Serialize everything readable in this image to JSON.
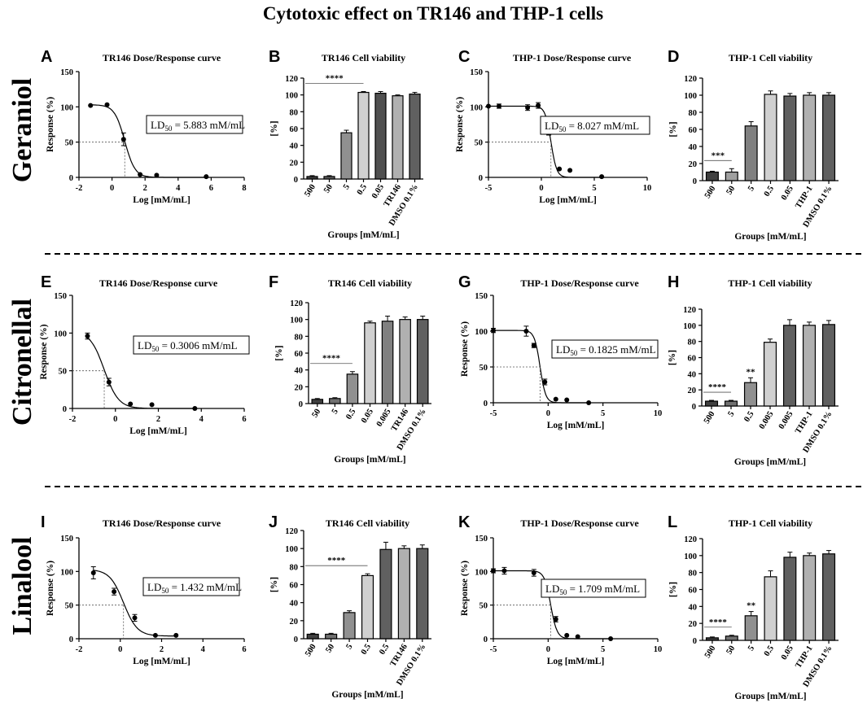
{
  "figure": {
    "title": "Cytotoxic effect on TR146 and THP-1 cells",
    "rows": [
      {
        "label": "Geraniol"
      },
      {
        "label": "Citronellal"
      },
      {
        "label": "Linalool"
      }
    ]
  },
  "chart_data": [
    {
      "panel": "A",
      "type": "scatter",
      "title": "TR146 Dose/Response curve",
      "xlabel": "Log [mM/mL]",
      "ylabel": "Response (%)",
      "xlim": [
        -2,
        8
      ],
      "ylim": [
        0,
        150
      ],
      "xticks": [
        -2,
        0,
        2,
        4,
        6,
        8
      ],
      "yticks": [
        0,
        50,
        100,
        150
      ],
      "x": [
        -1.3,
        -0.3,
        0.7,
        1.7,
        2.7,
        5.7
      ],
      "y": [
        102,
        103,
        54,
        4,
        3,
        1
      ],
      "err": [
        0,
        0,
        9,
        0,
        0,
        0
      ],
      "curve": {
        "top": 103,
        "bottom": 0,
        "logld50": 0.77,
        "hill": 1.4
      },
      "ld50": {
        "label": "LD",
        "sub": "50",
        "value": " = 5.883 mM/mL"
      }
    },
    {
      "panel": "B",
      "type": "bar",
      "title": "TR146 Cell viability",
      "ylabel": "[%]",
      "xlabel": "Groups [mM/mL]",
      "ylim": [
        0,
        120
      ],
      "yticks": [
        0,
        20,
        40,
        60,
        80,
        100,
        120
      ],
      "categories": [
        "500",
        "50",
        "5",
        "0.5",
        "0.05",
        "TR146",
        "DMSO 0.1%"
      ],
      "values": [
        3,
        3,
        55,
        103,
        102,
        99,
        101
      ],
      "errors": [
        1,
        1,
        3,
        1,
        2,
        1,
        2
      ],
      "colors": [
        "#404040",
        "#606060",
        "#909090",
        "#d0d0d0",
        "#505050",
        "#b0b0b0",
        "#606060"
      ],
      "significance": {
        "label": "****",
        "from": 0,
        "to": 3
      }
    },
    {
      "panel": "C",
      "type": "scatter",
      "title": "THP-1 Dose/Response curve",
      "xlabel": "Log [mM/mL]",
      "ylabel": "Response (%)",
      "xlim": [
        -5,
        10
      ],
      "ylim": [
        0,
        150
      ],
      "xticks": [
        -5,
        0,
        5,
        10
      ],
      "yticks": [
        0,
        50,
        100,
        150
      ],
      "x": [
        -5,
        -4,
        -1.3,
        -0.3,
        0.7,
        1.7,
        2.7,
        5.7
      ],
      "y": [
        101,
        101,
        99,
        102,
        65,
        12,
        10,
        1
      ],
      "err": [
        0,
        3,
        4,
        4,
        5,
        0,
        0,
        0
      ],
      "curve": {
        "top": 101,
        "bottom": 0,
        "logld50": 0.905,
        "hill": 1.6
      },
      "ld50": {
        "label": "LD",
        "sub": "50",
        "value": " = 8.027 mM/mL"
      }
    },
    {
      "panel": "D",
      "type": "bar",
      "title": "THP-1 Cell viability",
      "ylabel": "[%]",
      "xlabel": "Groups [mM/mL]",
      "ylim": [
        0,
        120
      ],
      "yticks": [
        0,
        20,
        40,
        60,
        80,
        100,
        120
      ],
      "categories": [
        "500",
        "50",
        "5",
        "0.5",
        "0.05",
        "THP-1",
        "DMSO 0.1%"
      ],
      "values": [
        10,
        10,
        64,
        101,
        99,
        100,
        100
      ],
      "errors": [
        1,
        4,
        5,
        4,
        3,
        3,
        3
      ],
      "colors": [
        "#404040",
        "#a0a0a0",
        "#808080",
        "#d0d0d0",
        "#606060",
        "#b0b0b0",
        "#606060"
      ],
      "significance": {
        "label": "***",
        "from": 0,
        "to": 1
      }
    },
    {
      "panel": "E",
      "type": "scatter",
      "title": "TR146 Dose/Response curve",
      "xlabel": "Log [mM/mL]",
      "ylabel": "Response (%)",
      "xlim": [
        -2,
        6
      ],
      "ylim": [
        0,
        150
      ],
      "xticks": [
        -2,
        0,
        2,
        4,
        6
      ],
      "yticks": [
        0,
        50,
        100,
        150
      ],
      "x": [
        -1.3,
        -0.3,
        0.7,
        1.7,
        3.7
      ],
      "y": [
        96,
        35,
        6,
        5,
        0
      ],
      "err": [
        4,
        5,
        0,
        0,
        0
      ],
      "curve": {
        "top": 103,
        "bottom": 0,
        "logld50": -0.52,
        "hill": 1.3
      },
      "ld50": {
        "label": "LD",
        "sub": "50",
        "value": " = 0.3006 mM/mL"
      }
    },
    {
      "panel": "F",
      "type": "bar",
      "title": "TR146 Cell viability",
      "ylabel": "[%]",
      "xlabel": "Groups [mM/mL]",
      "ylim": [
        0,
        120
      ],
      "yticks": [
        0,
        20,
        40,
        60,
        80,
        100,
        120
      ],
      "categories": [
        "50",
        "5",
        "0.5",
        "0.05",
        "0.005",
        "TR146",
        "DMSO 0.1%"
      ],
      "values": [
        5,
        6,
        35,
        96,
        98,
        100,
        100
      ],
      "errors": [
        1,
        1,
        3,
        2,
        6,
        3,
        4
      ],
      "colors": [
        "#404040",
        "#707070",
        "#909090",
        "#d0d0d0",
        "#808080",
        "#b0b0b0",
        "#606060"
      ],
      "significance": {
        "label": "****",
        "from": 0,
        "to": 2
      }
    },
    {
      "panel": "G",
      "type": "scatter",
      "title": "THP-1 Dose/Response curve",
      "xlabel": "Log [mM/mL]",
      "ylabel": "Response (%)",
      "xlim": [
        -5,
        10
      ],
      "ylim": [
        0,
        150
      ],
      "xticks": [
        -5,
        0,
        5,
        10
      ],
      "yticks": [
        0,
        50,
        100,
        150
      ],
      "x": [
        -5,
        -2,
        -1.3,
        -0.3,
        0.7,
        1.7,
        3.7
      ],
      "y": [
        101,
        100,
        80,
        29,
        5,
        4,
        0
      ],
      "err": [
        3,
        7,
        3,
        4,
        0,
        0,
        0
      ],
      "curve": {
        "top": 101,
        "bottom": 0,
        "logld50": -0.74,
        "hill": 1.7
      },
      "ld50": {
        "label": "LD",
        "sub": "50",
        "value": " = 0.1825 mM/mL"
      }
    },
    {
      "panel": "H",
      "type": "bar",
      "title": "THP-1 Cell viability",
      "ylabel": "[%]",
      "xlabel": "Groups [mM/mL]",
      "ylim": [
        0,
        120
      ],
      "yticks": [
        0,
        20,
        40,
        60,
        80,
        100,
        120
      ],
      "categories": [
        "500",
        "5",
        "0.5",
        "0.005",
        "0.005",
        "THP-1",
        "DMSO 0.1%"
      ],
      "values": [
        6,
        6,
        29,
        79,
        100,
        100,
        101
      ],
      "errors": [
        1,
        1,
        6,
        4,
        7,
        4,
        5
      ],
      "colors": [
        "#404040",
        "#707070",
        "#909090",
        "#d0d0d0",
        "#606060",
        "#b0b0b0",
        "#606060"
      ],
      "significance": {
        "label": "****",
        "from": 0,
        "to": 1
      },
      "bar_marks": [
        {
          "index": 2,
          "label": "**"
        }
      ]
    },
    {
      "panel": "I",
      "type": "scatter",
      "title": "TR146 Dose/Response curve",
      "xlabel": "Log [mM/mL]",
      "ylabel": "Response (%)",
      "xlim": [
        -2,
        6
      ],
      "ylim": [
        0,
        150
      ],
      "xticks": [
        -2,
        0,
        2,
        4,
        6
      ],
      "yticks": [
        0,
        50,
        100,
        150
      ],
      "x": [
        -1.3,
        -0.3,
        0.7,
        1.7,
        2.7
      ],
      "y": [
        98,
        70,
        31,
        5,
        5
      ],
      "err": [
        9,
        5,
        5,
        0,
        0
      ],
      "curve": {
        "top": 103,
        "bottom": 4,
        "logld50": 0.156,
        "hill": 1.3
      },
      "ld50": {
        "label": "LD",
        "sub": "50",
        "value": " = 1.432 mM/mL"
      }
    },
    {
      "panel": "J",
      "type": "bar",
      "title": "TR146 Cell viability",
      "ylabel": "[%]",
      "xlabel": "Groups [mM/mL]",
      "ylim": [
        0,
        120
      ],
      "yticks": [
        0,
        20,
        40,
        60,
        80,
        100,
        120
      ],
      "categories": [
        "500",
        "50",
        "5",
        "0.5",
        "0.5",
        "TR146",
        "DMSO 0.1%"
      ],
      "values": [
        5,
        5,
        29,
        70,
        99,
        100,
        100
      ],
      "errors": [
        1,
        1,
        2,
        2,
        8,
        3,
        4
      ],
      "colors": [
        "#404040",
        "#707070",
        "#909090",
        "#d0d0d0",
        "#606060",
        "#b0b0b0",
        "#606060"
      ],
      "significance": {
        "label": "****",
        "from": 0,
        "to": 3
      }
    },
    {
      "panel": "K",
      "type": "scatter",
      "title": "THP-1 Dose/Response curve",
      "xlabel": "Log [mM/mL]",
      "ylabel": "Response (%)",
      "xlim": [
        -5,
        10
      ],
      "ylim": [
        0,
        150
      ],
      "xticks": [
        -5,
        0,
        5,
        10
      ],
      "yticks": [
        0,
        50,
        100,
        150
      ],
      "x": [
        -5,
        -4,
        -1.3,
        -0.3,
        0.7,
        1.7,
        2.7,
        5.7
      ],
      "y": [
        101,
        101,
        98,
        75,
        29,
        5,
        3,
        0
      ],
      "err": [
        3,
        5,
        5,
        4,
        4,
        0,
        0,
        0
      ],
      "curve": {
        "top": 101,
        "bottom": 0,
        "logld50": 0.233,
        "hill": 1.5
      },
      "ld50": {
        "label": "LD",
        "sub": "50",
        "value": " = 1.709 mM/mL"
      }
    },
    {
      "panel": "L",
      "type": "bar",
      "title": "THP-1 Cell viability",
      "ylabel": "[%]",
      "xlabel": "Groups [mM/mL]",
      "ylim": [
        0,
        120
      ],
      "yticks": [
        0,
        20,
        40,
        60,
        80,
        100,
        120
      ],
      "categories": [
        "500",
        "50",
        "5",
        "0.5",
        "0.05",
        "THP-1",
        "DMSO 0.1%"
      ],
      "values": [
        3,
        5,
        29,
        75,
        98,
        100,
        102
      ],
      "errors": [
        1,
        1,
        5,
        7,
        6,
        3,
        4
      ],
      "colors": [
        "#404040",
        "#707070",
        "#909090",
        "#d0d0d0",
        "#606060",
        "#b0b0b0",
        "#606060"
      ],
      "significance": {
        "label": "****",
        "from": 0,
        "to": 1
      },
      "bar_marks": [
        {
          "index": 2,
          "label": "**"
        }
      ]
    }
  ]
}
